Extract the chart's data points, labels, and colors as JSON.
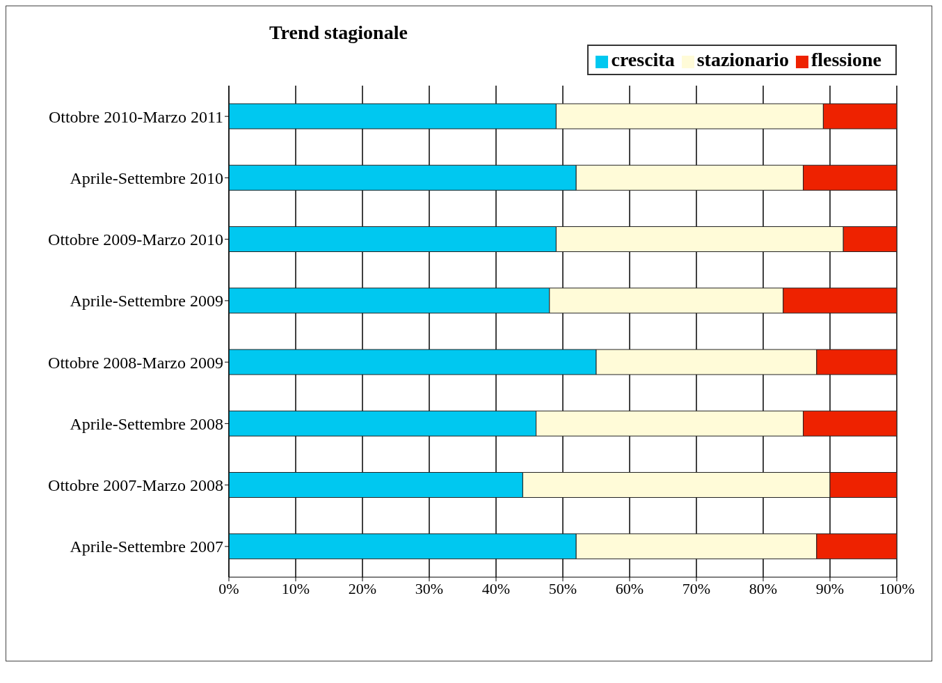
{
  "chart_data": {
    "type": "bar",
    "title": "Trend stagionale",
    "orientation": "horizontal",
    "stacked": true,
    "categories": [
      "Ottobre 2010-Marzo 2011",
      "Aprile-Settembre 2010",
      "Ottobre 2009-Marzo 2010",
      "Aprile-Settembre 2009",
      "Ottobre 2008-Marzo 2009",
      "Aprile-Settembre 2008",
      "Ottobre 2007-Marzo 2008",
      "Aprile-Settembre 2007"
    ],
    "series": [
      {
        "name": "crescita",
        "color": "#00c8f0",
        "values": [
          49,
          52,
          49,
          48,
          55,
          46,
          44,
          52
        ]
      },
      {
        "name": "stazionario",
        "color": "#fffbd8",
        "values": [
          40,
          34,
          43,
          35,
          33,
          40,
          46,
          36
        ]
      },
      {
        "name": "flessione",
        "color": "#ee2200",
        "values": [
          11,
          14,
          8,
          17,
          12,
          14,
          10,
          12
        ]
      }
    ],
    "xlim": [
      0,
      100
    ],
    "xticks": [
      {
        "value": 0,
        "label": "0%"
      },
      {
        "value": 10,
        "label": "10%"
      },
      {
        "value": 20,
        "label": "20%"
      },
      {
        "value": 30,
        "label": "30%"
      },
      {
        "value": 40,
        "label": "40%"
      },
      {
        "value": 50,
        "label": "50%"
      },
      {
        "value": 60,
        "label": "60%"
      },
      {
        "value": 70,
        "label": "70%"
      },
      {
        "value": 80,
        "label": "80%"
      },
      {
        "value": 90,
        "label": "90%"
      },
      {
        "value": 100,
        "label": "100%"
      }
    ],
    "grid": "x",
    "legend": "top right"
  }
}
